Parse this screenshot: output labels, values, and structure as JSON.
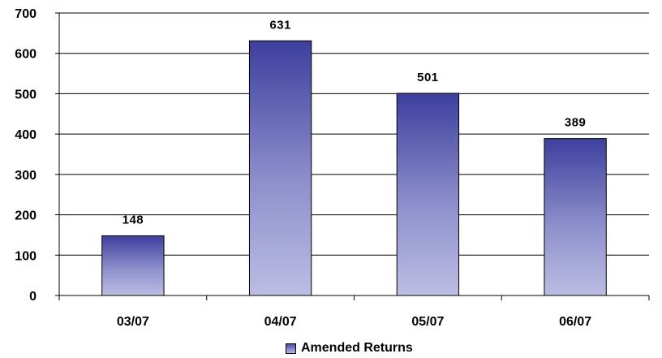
{
  "chart_data": {
    "type": "bar",
    "categories": [
      "03/07",
      "04/07",
      "05/07",
      "06/07"
    ],
    "series": [
      {
        "name": "Amended Returns",
        "values": [
          148,
          631,
          501,
          389
        ]
      }
    ],
    "data_labels": [
      "148",
      "631",
      "501",
      "389"
    ],
    "y_ticks": [
      "0",
      "100",
      "200",
      "300",
      "400",
      "500",
      "600",
      "700"
    ],
    "ylim": [
      0,
      700
    ],
    "grid": true,
    "legend_position": "bottom",
    "colors": {
      "bar_top": "#3d3f9e",
      "bar_bottom": "#bcbde3",
      "grid": "#000000"
    }
  }
}
